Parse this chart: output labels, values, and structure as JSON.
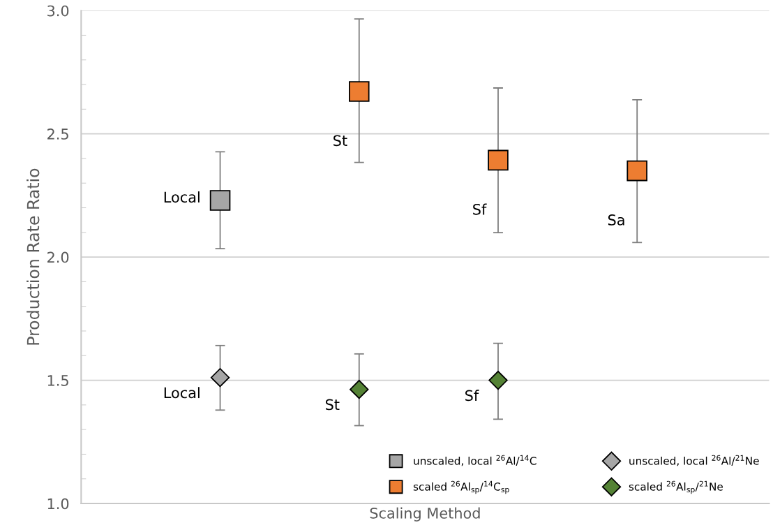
{
  "chart_data": {
    "type": "scatter",
    "xlabel": "Scaling Method",
    "ylabel": "Production Rate Ratio",
    "categories": [
      null,
      null,
      null,
      null
    ],
    "ylim": [
      1.0,
      3.0
    ],
    "yticks": [
      {
        "value": 1,
        "label": "1.0"
      },
      1.5,
      {
        "value": 2,
        "label": "2.0"
      },
      2.5,
      {
        "value": 3,
        "label": "3.0"
      }
    ],
    "grid": "y",
    "legend": "bottom right",
    "tick_labels": "y",
    "series": [
      {
        "name": "unscaled, local $^{26}$Al/$^{14}$C",
        "color": "#a6a6a6",
        "marker": "square",
        "values": [
          2.23,
          null,
          null,
          null
        ],
        "errors": [
          [
            2.034,
            2.427
          ],
          null,
          null,
          null
        ],
        "value_labels": [
          "Local",
          null,
          null,
          null
        ]
      },
      {
        "name": "scaled $^{26}$Al$_{sp}$/$^{14}$C$_{sp}$",
        "color": "#ed7d31",
        "marker": "square",
        "values": [
          null,
          2.672,
          2.393,
          2.35
        ],
        "errors": [
          null,
          [
            2.384,
            2.966
          ],
          [
            2.099,
            2.686
          ],
          [
            2.059,
            2.638
          ]
        ],
        "value_labels": [
          null,
          "St",
          "Sf",
          "Sa"
        ]
      },
      {
        "name": "unscaled, local $^{26}$Al/$^{21}$Ne",
        "color": "#a6a6a6",
        "marker": "diamond",
        "values": [
          1.511,
          null,
          null,
          null
        ],
        "errors": [
          [
            1.379,
            1.641
          ],
          null,
          null,
          null
        ],
        "value_labels": [
          "Local",
          null,
          null,
          null
        ]
      },
      {
        "name": "scaled $^{26}$Al$_{sp}$/$^{21}$Ne",
        "color": "#548235",
        "marker": "diamond",
        "values": [
          null,
          1.463,
          1.5,
          null
        ],
        "errors": [
          null,
          [
            1.316,
            1.607
          ],
          [
            1.342,
            1.65
          ],
          null
        ],
        "value_labels": [
          null,
          "St",
          "Sf",
          null
        ]
      }
    ]
  }
}
